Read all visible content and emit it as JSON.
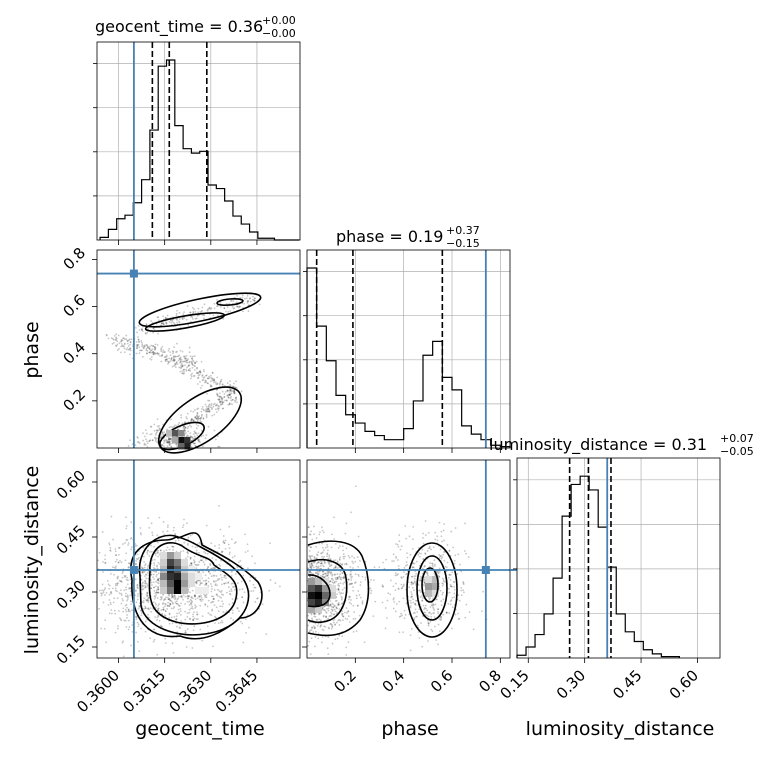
{
  "chart_data": [
    {
      "type": "histogram",
      "panel": "geocent_time_1d",
      "title": {
        "prefix": "geocent_time = 0.36",
        "plus": "+0.00",
        "minus": "−0.00"
      },
      "xlim": [
        0.3593,
        0.3659
      ],
      "x_bin_edges": [
        0.3594,
        0.35967,
        0.35994,
        0.36021,
        0.36048,
        0.36075,
        0.36102,
        0.36129,
        0.36156,
        0.36183,
        0.3621,
        0.36237,
        0.36264,
        0.36291,
        0.36318,
        0.36345,
        0.36372,
        0.36399,
        0.36426,
        0.36453,
        0.3648,
        0.36507,
        0.36534,
        0.36561,
        0.36588
      ],
      "counts": [
        3,
        12,
        24,
        28,
        42,
        68,
        124,
        196,
        203,
        129,
        103,
        98,
        100,
        62,
        58,
        44,
        27,
        18,
        9,
        2,
        2,
        0,
        0,
        0
      ],
      "quantile_lines": [
        0.3611,
        0.36165,
        0.36287
      ],
      "truth": 0.3605,
      "xticks": [
        "0.3600",
        "0.3615",
        "0.3630",
        "0.3645"
      ],
      "grid": true
    },
    {
      "type": "histogram",
      "panel": "phase_1d",
      "title": {
        "prefix": "phase = 0.19",
        "plus": "+0.37",
        "minus": "−0.15"
      },
      "xlim": [
        0.0,
        0.84
      ],
      "x_bin_edges": [
        0.0,
        0.04,
        0.08,
        0.12,
        0.16,
        0.2,
        0.24,
        0.28,
        0.32,
        0.36,
        0.4,
        0.44,
        0.48,
        0.52,
        0.56,
        0.6,
        0.64,
        0.68,
        0.72,
        0.76,
        0.8,
        0.84
      ],
      "counts": [
        130,
        88,
        63,
        38,
        24,
        18,
        12,
        9,
        6,
        6,
        14,
        34,
        67,
        77,
        51,
        42,
        16,
        10,
        6,
        2,
        1
      ],
      "quantile_lines": [
        0.04,
        0.19,
        0.56
      ],
      "truth": 0.74,
      "xticks": [
        "0.2",
        "0.4",
        "0.6",
        "0.8"
      ],
      "grid": true
    },
    {
      "type": "histogram",
      "panel": "luminosity_distance_1d",
      "title": {
        "prefix": "luminosity_distance = 0.31",
        "plus": "+0.07",
        "minus": "−0.05"
      },
      "xlim": [
        0.12,
        0.66
      ],
      "x_bin_edges": [
        0.12,
        0.144,
        0.168,
        0.192,
        0.216,
        0.24,
        0.264,
        0.288,
        0.312,
        0.336,
        0.36,
        0.384,
        0.408,
        0.432,
        0.456,
        0.48,
        0.504,
        0.528,
        0.552
      ],
      "counts": [
        2,
        8,
        17,
        32,
        58,
        103,
        126,
        132,
        122,
        95,
        66,
        32,
        19,
        12,
        6,
        3,
        1,
        1
      ],
      "quantile_lines": [
        0.26,
        0.31,
        0.37
      ],
      "truth": 0.36,
      "xticks": [
        "0.15",
        "0.30",
        "0.45",
        "0.60"
      ],
      "grid": true
    },
    {
      "type": "contour-scatter",
      "panel": "geocent_time_vs_phase",
      "xlabel": "",
      "ylabel": "phase",
      "xlim": [
        0.3593,
        0.3659
      ],
      "ylim": [
        0.0,
        0.84
      ],
      "yticks": [
        "0.2",
        "0.4",
        "0.6",
        "0.8"
      ],
      "truth": {
        "x": 0.3605,
        "y": 0.74
      },
      "bands": [
        {
          "x_start": 0.3621,
          "y_start": 0.1,
          "x_end": 0.3638,
          "y_end": 0.23,
          "weight": 0.2
        },
        {
          "x_start": 0.3598,
          "y_start": 0.46,
          "x_end": 0.3625,
          "y_end": 0.36,
          "weight": 0.28
        },
        {
          "x_start": 0.3618,
          "y_start": 0.36,
          "x_end": 0.3638,
          "y_end": 0.24,
          "weight": 0.17
        },
        {
          "x_start": 0.3606,
          "y_start": 0.5,
          "x_end": 0.3644,
          "y_end": 0.63,
          "weight": 0.25
        }
      ],
      "peaks": [
        {
          "x": 0.3615,
          "y": 0.04,
          "density": 0.85
        },
        {
          "x": 0.3622,
          "y": 0.04,
          "density": 0.65
        }
      ]
    },
    {
      "type": "contour-scatter",
      "panel": "geocent_time_vs_luminosity_distance",
      "xlabel": "geocent_time",
      "ylabel": "luminosity_distance",
      "xlim": [
        0.3593,
        0.3659
      ],
      "ylim": [
        0.12,
        0.66
      ],
      "xticks": [
        "0.3600",
        "0.3615",
        "0.3630",
        "0.3645"
      ],
      "yticks": [
        "0.15",
        "0.30",
        "0.45",
        "0.60"
      ],
      "truth": {
        "x": 0.3605,
        "y": 0.36
      },
      "peaks": [
        {
          "x": 0.3617,
          "y": 0.32,
          "density": 1.0
        }
      ]
    },
    {
      "type": "contour-scatter",
      "panel": "phase_vs_luminosity_distance",
      "xlabel": "phase",
      "ylabel": "",
      "xlim": [
        0.0,
        0.84
      ],
      "ylim": [
        0.12,
        0.66
      ],
      "xticks": [
        "0.2",
        "0.4",
        "0.6",
        "0.8"
      ],
      "truth": {
        "x": 0.74,
        "y": 0.36
      },
      "peaks": [
        {
          "x": 0.03,
          "y": 0.31,
          "density": 1.0
        },
        {
          "x": 0.5,
          "y": 0.32,
          "density": 0.55
        }
      ]
    }
  ]
}
